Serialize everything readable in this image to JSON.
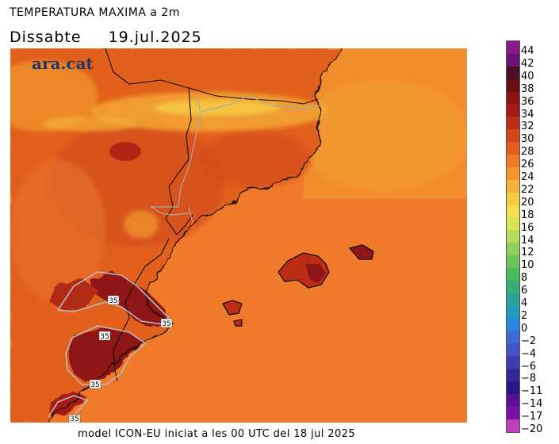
{
  "title": "TEMPERATURA MAXIMA a 2m",
  "day": "Dissabte",
  "date": "19.jul.2025",
  "brand": "ara.cat",
  "footer": "model ICON-EU iniciat a les 00 UTC del 18 jul 2025",
  "contour_labels": [
    "35",
    "35",
    "35",
    "35",
    "35"
  ],
  "colors": {
    "sea": "#f07a2a",
    "land_base": "#e25f1f",
    "hot": "#8f1616",
    "very_hot": "#b12a18",
    "cool": "#f5a33a",
    "mountain": "#f8cf45"
  },
  "legend": {
    "labels": [
      "44",
      "42",
      "40",
      "38",
      "36",
      "34",
      "32",
      "30",
      "28",
      "26",
      "24",
      "22",
      "20",
      "18",
      "16",
      "14",
      "12",
      "10",
      "8",
      "6",
      "4",
      "2",
      "0",
      "-2",
      "-4",
      "-6",
      "-8",
      "-11",
      "-14",
      "-17",
      "-20"
    ],
    "colors": [
      "#8a1a8a",
      "#6a1276",
      "#4a0d2a",
      "#6b0e12",
      "#8a1414",
      "#a51c17",
      "#bd2d16",
      "#d2441a",
      "#e25f1f",
      "#ee7a26",
      "#f2962e",
      "#f5b137",
      "#f6cb3e",
      "#f3e04b",
      "#d8e356",
      "#b6dc5c",
      "#8fd05e",
      "#6cc45c",
      "#4cbb5e",
      "#37ae79",
      "#2aa39a",
      "#2599c0",
      "#2a86de",
      "#3a6ad8",
      "#4453c6",
      "#3f3eb1",
      "#33289a",
      "#2a168a",
      "#5a1196",
      "#7a12a6",
      "#c23cbf"
    ]
  }
}
